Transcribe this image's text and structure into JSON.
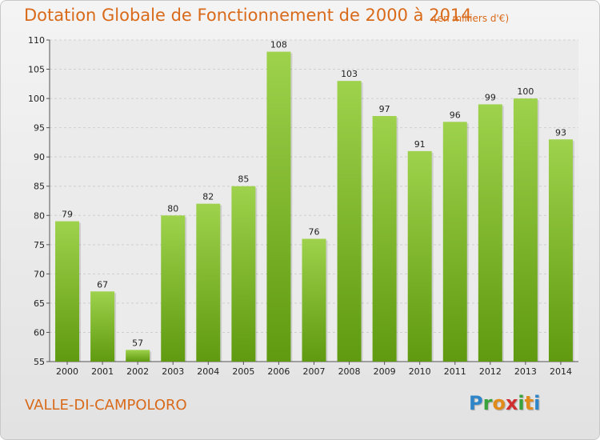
{
  "header": {
    "title": "Dotation Globale de Fonctionnement de 2000 à 2014",
    "unit_note": "(en milliers d'€)"
  },
  "footer": {
    "commune": "VALLE-DI-CAMPOLORO",
    "logo_letters": [
      "P",
      "r",
      "o",
      "x",
      "i",
      "t",
      "i"
    ],
    "logo_colors": [
      "#2e86c9",
      "#3aa23a",
      "#e08b1a",
      "#d12f2f",
      "#3aa23a",
      "#e08b1a",
      "#2e86c9"
    ]
  },
  "colors": {
    "accent": "#d96a1a",
    "bar_top": "#9ed24c",
    "bar_bottom": "#5f9a10",
    "grid": "#cfcfcf"
  },
  "chart_data": {
    "type": "bar",
    "title": "Dotation Globale de Fonctionnement de 2000 à 2014",
    "subtitle": "(en milliers d'€)",
    "xlabel": "",
    "ylabel": "",
    "categories": [
      "2000",
      "2001",
      "2002",
      "2003",
      "2004",
      "2005",
      "2006",
      "2007",
      "2008",
      "2009",
      "2010",
      "2011",
      "2012",
      "2013",
      "2014"
    ],
    "values": [
      79,
      67,
      57,
      80,
      82,
      85,
      108,
      76,
      103,
      97,
      91,
      96,
      99,
      100,
      93
    ],
    "ylim": [
      55,
      110
    ],
    "yticks": [
      55,
      60,
      65,
      70,
      75,
      80,
      85,
      90,
      95,
      100,
      105,
      110
    ],
    "grid": "dashed horizontal"
  }
}
